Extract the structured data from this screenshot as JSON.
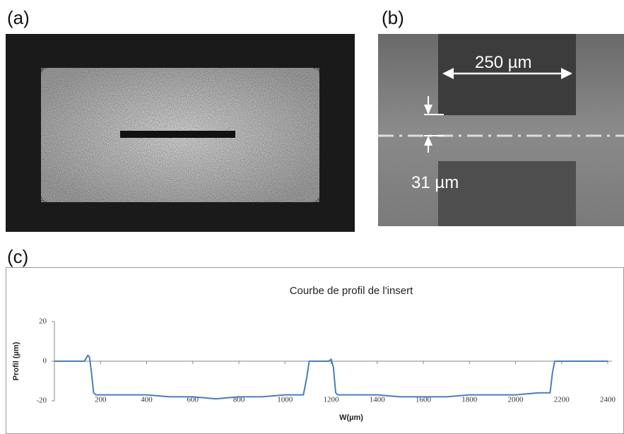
{
  "panels": {
    "a": "(a)",
    "b": "(b)",
    "c": "(c)"
  },
  "annotations": {
    "width": "250 µm",
    "gap": "31 µm"
  },
  "chart_data": {
    "type": "line",
    "title": "Courbe de profil de l'insert",
    "x_label": "W(µm)",
    "y_label": "Profil (µm)",
    "x": [
      0,
      130,
      145,
      152,
      160,
      170,
      180,
      200,
      300,
      400,
      500,
      600,
      700,
      800,
      900,
      1000,
      1080,
      1095,
      1105,
      1115,
      1190,
      1200,
      1210,
      1220,
      1230,
      1300,
      1400,
      1500,
      1600,
      1700,
      1800,
      1900,
      2000,
      2100,
      2150,
      2160,
      2170,
      2180,
      2400
    ],
    "series": [
      {
        "name": "Profil",
        "color": "#4a7ebb",
        "values": [
          0,
          0,
          3,
          2,
          -5,
          -16,
          -17,
          -17,
          -17,
          -17,
          -18,
          -18,
          -19,
          -18,
          -18,
          -17,
          -17,
          -8,
          0,
          0,
          0,
          1,
          -3,
          -16,
          -17,
          -17,
          -17,
          -18,
          -18,
          -18,
          -17,
          -17,
          -17,
          -16,
          -16,
          -6,
          0,
          0,
          0
        ]
      }
    ],
    "xlim": [
      0,
      2400
    ],
    "xticks": [
      200,
      400,
      600,
      800,
      1000,
      1200,
      1400,
      1600,
      1800,
      2000,
      2200,
      2400
    ],
    "ylim": [
      -20,
      20
    ],
    "yticks": [
      -20,
      0,
      20
    ]
  }
}
